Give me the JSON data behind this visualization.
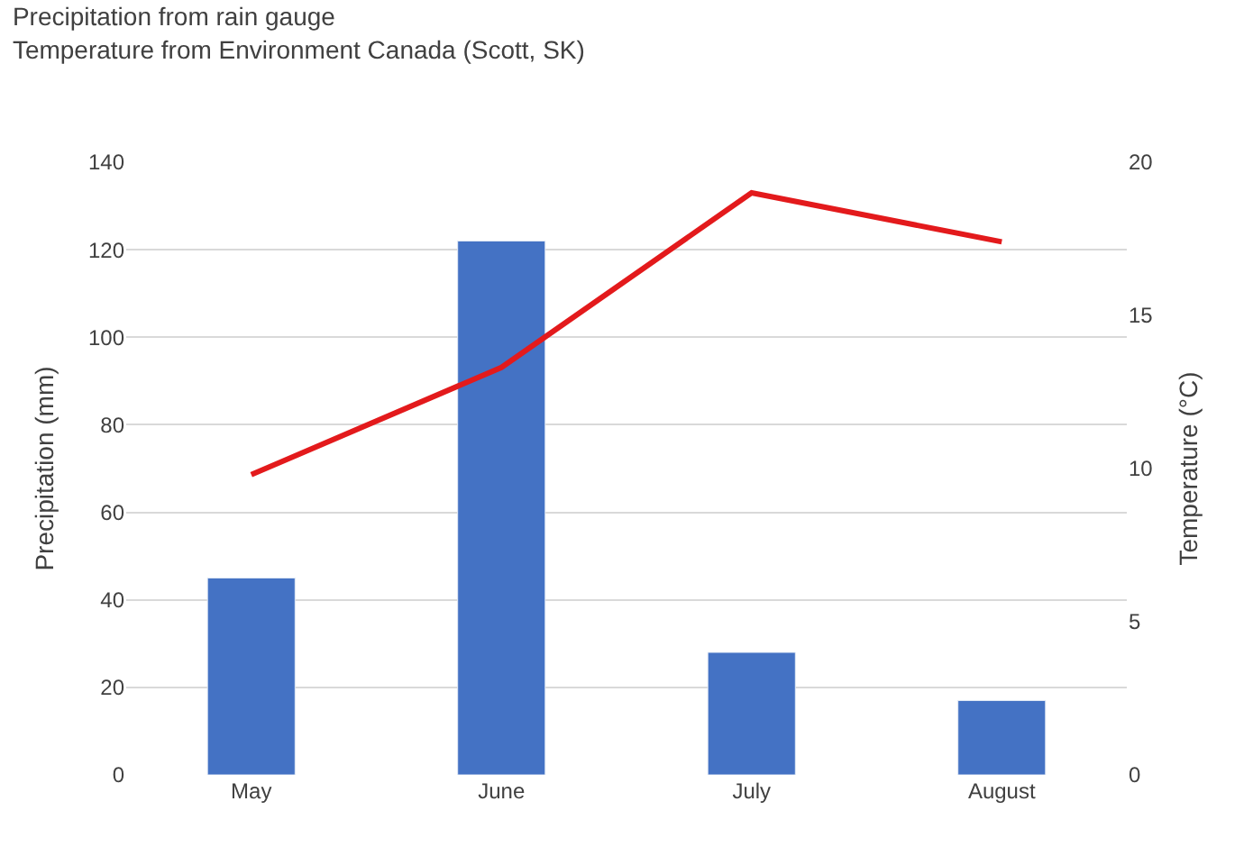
{
  "chart_data": {
    "type": "bar",
    "title": "Precipitation from rain gauge",
    "subtitle": "Temperature from Environment Canada (Scott, SK)",
    "ylabel": "Precipitation (mm)",
    "y2label": "Temperature (°C)",
    "categories": [
      "May",
      "June",
      "July",
      "August"
    ],
    "series": [
      {
        "color": "#4472c4",
        "values": [
          45,
          122,
          28,
          17
        ]
      },
      {
        "type": "line",
        "axis": "y2",
        "color": "#e31a1c",
        "values": [
          9.8,
          13.3,
          19.0,
          17.4
        ]
      }
    ],
    "ylim": [
      0,
      140
    ],
    "yticks": [
      0,
      20,
      40,
      60,
      80,
      100,
      120,
      140
    ],
    "y2lim": [
      0,
      20
    ],
    "y2ticks": [
      0,
      5,
      10,
      15,
      20
    ],
    "grid": "y",
    "marker": "none",
    "line_style": "solid"
  }
}
